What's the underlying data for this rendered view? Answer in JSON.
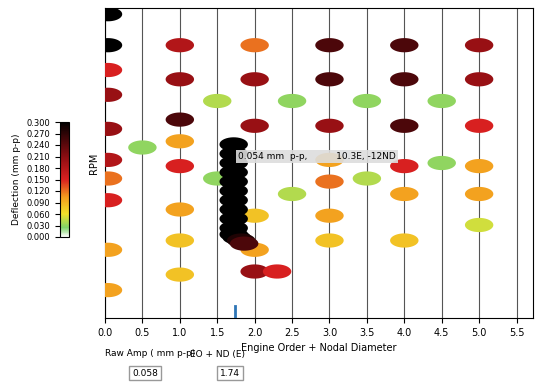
{
  "chart_data": {
    "type": "scatter",
    "xlabel": "Engine Order + Nodal Diameter",
    "ylabel": "RPM",
    "xlim": [
      0,
      5.72
    ],
    "ylim": [
      0,
      100
    ],
    "xticks": [
      {
        "value": 0,
        "label": "0.0"
      },
      {
        "value": 0.5,
        "label": "0.5"
      },
      {
        "value": 1,
        "label": "1.0"
      },
      {
        "value": 1.5,
        "label": "1.5"
      },
      {
        "value": 2,
        "label": "2.0"
      },
      {
        "value": 2.5,
        "label": "2.5"
      },
      {
        "value": 3,
        "label": "3.0"
      },
      {
        "value": 3.5,
        "label": "3.5"
      },
      {
        "value": 4,
        "label": "4.0"
      },
      {
        "value": 4.5,
        "label": "4.5"
      },
      {
        "value": 5,
        "label": "5.0"
      },
      {
        "value": 5.5,
        "label": "5.5"
      }
    ],
    "tick_labels": "x",
    "grid": true,
    "annotation": "0.054 mm  p-p,          10.3E, -12ND",
    "colorbar": {
      "label": "Deflection (mm p-p)",
      "lim": [
        0,
        0.3
      ],
      "ticks": [
        {
          "value": 0,
          "label": "0.000"
        },
        {
          "value": 0.03,
          "label": "0.030"
        },
        {
          "value": 0.06,
          "label": "0.060"
        },
        {
          "value": 0.09,
          "label": "0.090"
        },
        {
          "value": 0.12,
          "label": "0.120"
        },
        {
          "value": 0.15,
          "label": "0.150"
        },
        {
          "value": 0.18,
          "label": "0.180"
        },
        {
          "value": 0.21,
          "label": "0.210"
        },
        {
          "value": 0.24,
          "label": "0.240"
        },
        {
          "value": 0.27,
          "label": "0.270"
        },
        {
          "value": 0.3,
          "label": "0.300"
        }
      ]
    },
    "readouts": [
      {
        "label": "Raw Amp ( mm p-p)",
        "value": 0.058
      },
      {
        "label": "EO + ND (E)",
        "value": 1.74
      }
    ],
    "spots": {
      "x": [
        0.04,
        0.04,
        0.04,
        0.04,
        0.04,
        0.04,
        0.04,
        0.04,
        0.04,
        0.04,
        1.0,
        1.0,
        1.0,
        1.0,
        1.0,
        1.0,
        1.0,
        1.0,
        2.0,
        2.0,
        2.0,
        2.0,
        2.0,
        2.0,
        2.3,
        3.0,
        3.0,
        3.0,
        3.0,
        3.0,
        3.0,
        3.0,
        4.0,
        4.0,
        4.0,
        4.0,
        4.0,
        4.0,
        5.0,
        5.0,
        5.0,
        5.0,
        5.0,
        5.0,
        2.5,
        2.5,
        3.5,
        3.5,
        4.5,
        4.5,
        1.5,
        1.5,
        0.5,
        1.72,
        1.72,
        1.72,
        1.72,
        1.72,
        1.72,
        1.72,
        1.72,
        1.72,
        1.72,
        1.72,
        1.76,
        1.82,
        1.86
      ],
      "y": [
        98,
        88,
        80,
        72,
        61,
        51,
        45,
        38,
        22,
        9,
        88,
        77,
        64,
        57,
        49,
        35,
        25,
        14,
        88,
        77,
        62,
        33,
        22,
        15,
        15,
        88,
        77,
        62,
        51,
        44,
        33,
        25,
        88,
        77,
        62,
        49,
        40,
        25,
        88,
        77,
        62,
        49,
        40,
        30,
        70,
        40,
        70,
        45,
        70,
        50,
        70,
        45,
        55,
        56,
        53,
        50,
        47,
        44,
        41,
        38,
        35,
        32,
        29,
        27,
        26,
        25,
        24
      ],
      "values": [
        0.3,
        0.3,
        0.15,
        0.2,
        0.2,
        0.18,
        0.12,
        0.15,
        0.1,
        0.1,
        0.18,
        0.2,
        0.25,
        0.1,
        0.15,
        0.1,
        0.08,
        0.08,
        0.12,
        0.2,
        0.2,
        0.08,
        0.1,
        0.2,
        0.15,
        0.25,
        0.25,
        0.2,
        0.1,
        0.12,
        0.1,
        0.08,
        0.25,
        0.25,
        0.25,
        0.15,
        0.1,
        0.08,
        0.2,
        0.2,
        0.15,
        0.1,
        0.1,
        0.05,
        0.03,
        0.04,
        0.03,
        0.04,
        0.03,
        0.03,
        0.04,
        0.03,
        0.03,
        0.3,
        0.3,
        0.3,
        0.3,
        0.3,
        0.3,
        0.3,
        0.3,
        0.3,
        0.3,
        0.3,
        0.3,
        0.28,
        0.25
      ]
    }
  }
}
